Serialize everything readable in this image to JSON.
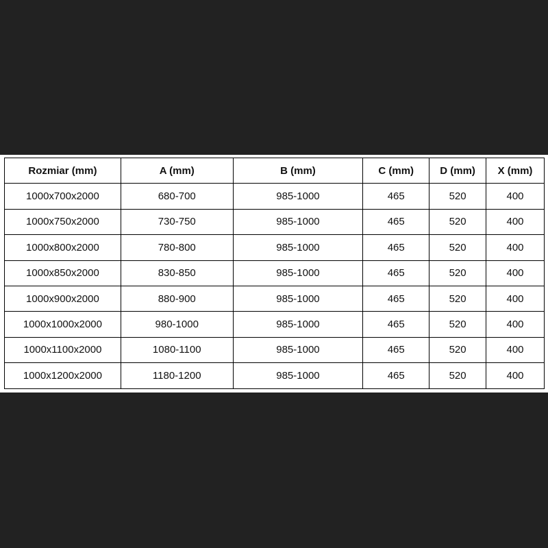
{
  "table": {
    "headers": [
      "Rozmiar (mm)",
      "A (mm)",
      "B (mm)",
      "C (mm)",
      "D (mm)",
      "X (mm)"
    ],
    "rows": [
      [
        "1000x700x2000",
        "680-700",
        "985-1000",
        "465",
        "520",
        "400"
      ],
      [
        "1000x750x2000",
        "730-750",
        "985-1000",
        "465",
        "520",
        "400"
      ],
      [
        "1000x800x2000",
        "780-800",
        "985-1000",
        "465",
        "520",
        "400"
      ],
      [
        "1000x850x2000",
        "830-850",
        "985-1000",
        "465",
        "520",
        "400"
      ],
      [
        "1000x900x2000",
        "880-900",
        "985-1000",
        "465",
        "520",
        "400"
      ],
      [
        "1000x1000x2000",
        "980-1000",
        "985-1000",
        "465",
        "520",
        "400"
      ],
      [
        "1000x1100x2000",
        "1080-1100",
        "985-1000",
        "465",
        "520",
        "400"
      ],
      [
        "1000x1200x2000",
        "1180-1200",
        "985-1000",
        "465",
        "520",
        "400"
      ]
    ]
  },
  "colors": {
    "background": "#222222",
    "panel": "#ffffff",
    "border": "#000000"
  }
}
